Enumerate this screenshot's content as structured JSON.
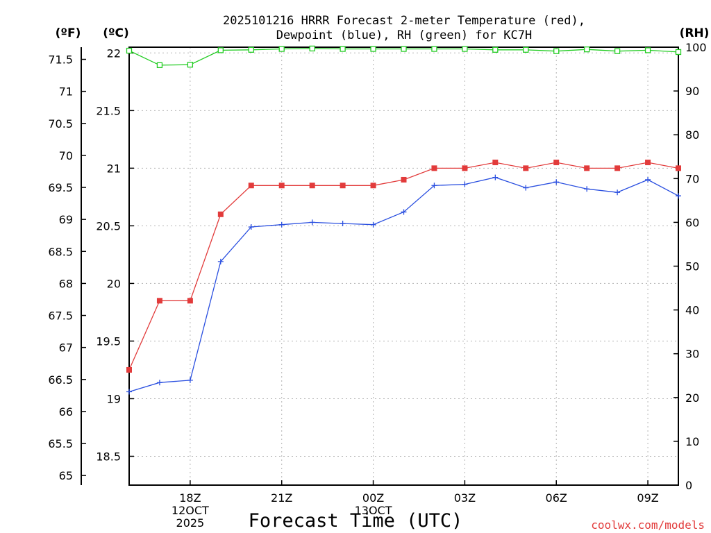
{
  "chart_data": {
    "type": "line",
    "title_lines": [
      "2025101216 HRRR Forecast 2-meter Temperature (red),",
      "Dewpoint (blue), RH (green) for KC7H"
    ],
    "unit_labels": {
      "fahrenheit": "(ºF)",
      "celsius": "(ºC)",
      "rh": "(RH)"
    },
    "xlabel": "Forecast Time (UTC)",
    "credit": "coolwx.com/models",
    "x_range_hours": [
      0,
      18
    ],
    "x_ticks": [
      {
        "hour": 2,
        "lines": [
          "18Z",
          "12OCT",
          "2025"
        ]
      },
      {
        "hour": 5,
        "lines": [
          "21Z"
        ]
      },
      {
        "hour": 8,
        "lines": [
          "00Z",
          "13OCT"
        ]
      },
      {
        "hour": 11,
        "lines": [
          "03Z"
        ]
      },
      {
        "hour": 14,
        "lines": [
          "06Z"
        ]
      },
      {
        "hour": 17,
        "lines": [
          "09Z"
        ]
      }
    ],
    "y_left_celsius": {
      "range": [
        18.25,
        22.05
      ],
      "ticks": [
        "18.5",
        "19",
        "19.5",
        "20",
        "20.5",
        "21",
        "21.5",
        "22"
      ]
    },
    "y_left_fahrenheit": {
      "ticks": [
        "65",
        "65.5",
        "66",
        "66.5",
        "67",
        "67.5",
        "68",
        "68.5",
        "69",
        "69.5",
        "70",
        "70.5",
        "71",
        "71.5"
      ]
    },
    "y_right_rh": {
      "range": [
        0,
        100
      ],
      "ticks": [
        "0",
        "10",
        "20",
        "30",
        "40",
        "50",
        "60",
        "70",
        "80",
        "90",
        "100"
      ]
    },
    "series": [
      {
        "name": "Temperature",
        "units": "C",
        "color": "#e23b3b",
        "marker": "filled-square",
        "values": [
          19.25,
          19.85,
          19.85,
          20.6,
          20.85,
          20.85,
          20.85,
          20.85,
          20.85,
          20.9,
          21.0,
          21.0,
          21.05,
          21.0,
          21.05,
          21.0,
          21.0,
          21.05,
          21.0
        ]
      },
      {
        "name": "Dewpoint",
        "units": "C",
        "color": "#2a4fe0",
        "marker": "plus",
        "values": [
          19.06,
          19.14,
          19.16,
          20.19,
          20.49,
          20.51,
          20.53,
          20.52,
          20.51,
          20.62,
          20.85,
          20.86,
          20.92,
          20.83,
          20.88,
          20.82,
          20.79,
          20.9,
          20.76
        ]
      },
      {
        "name": "RH",
        "units": "%",
        "color": "#22cc22",
        "marker": "open-square",
        "values": [
          99.2,
          95.9,
          96.0,
          99.3,
          99.4,
          99.6,
          99.7,
          99.6,
          99.6,
          99.6,
          99.6,
          99.6,
          99.4,
          99.4,
          99.1,
          99.5,
          99.1,
          99.3,
          98.9
        ]
      }
    ],
    "grid": true
  }
}
